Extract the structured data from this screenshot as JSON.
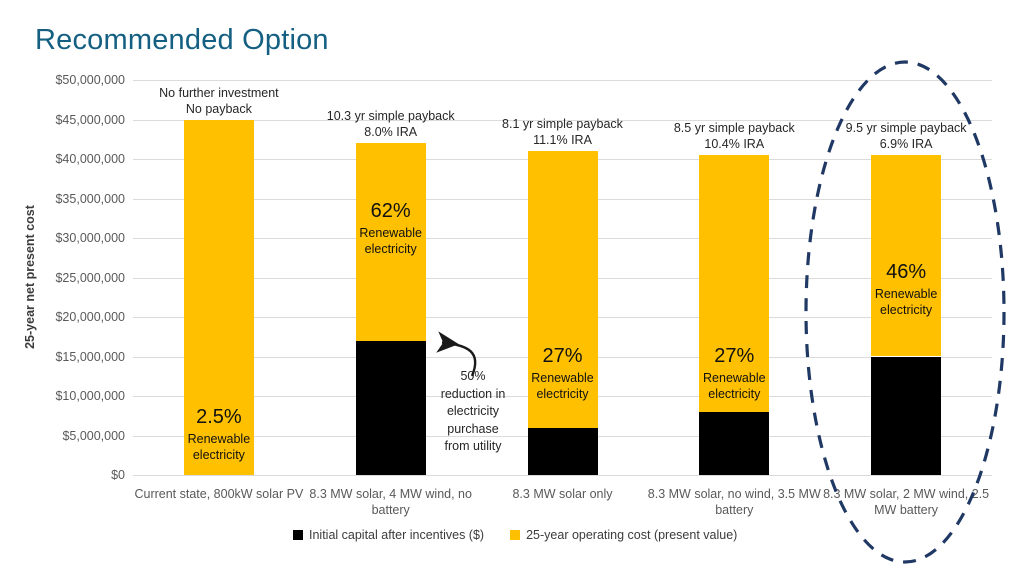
{
  "title": "Recommended Option",
  "colors": {
    "title": "#156082",
    "capital_black": "#000000",
    "operating_yellow": "#FFC000",
    "ellipse_navy": "#1F3864",
    "axis_text": "#595959",
    "annotation_text": "#262626",
    "gridline": "#DBDBDB",
    "arrow": "#1a1a1a"
  },
  "chart_data": {
    "type": "bar",
    "stacked": true,
    "ylabel": "25-year net present cost",
    "ylim": [
      0,
      50000000
    ],
    "ytick_step": 5000000,
    "grid": true,
    "ytick_labels": [
      "$0",
      "$5,000,000",
      "$10,000,000",
      "$15,000,000",
      "$20,000,000",
      "$25,000,000",
      "$30,000,000",
      "$35,000,000",
      "$40,000,000",
      "$45,000,000",
      "$50,000,000"
    ],
    "categories": [
      "Current state, 800kW solar PV",
      "8.3 MW solar, 4 MW wind, no battery",
      "8.3 MW solar only",
      "8.3 MW solar, no wind, 3.5 MW battery",
      "8.3 MW solar, 2 MW wind, 2.5 MW battery"
    ],
    "series": [
      {
        "name": "Initial capital after incentives ($)",
        "color": "#000000",
        "values": [
          0,
          17000000,
          6000000,
          8000000,
          15000000
        ]
      },
      {
        "name": "25-year operating cost  (present value)",
        "color": "#FFC000",
        "values": [
          45000000,
          25000000,
          35000000,
          32500000,
          25500000
        ]
      }
    ],
    "bar_totals": [
      45000000,
      42000000,
      41000000,
      40500000,
      40500000
    ],
    "bar_annotations": [
      "No further investment\nNo payback",
      "10.3 yr simple payback\n8.0% IRA",
      "8.1 yr simple payback\n11.1% IRA",
      "8.5 yr simple payback\n10.4% IRA",
      "9.5 yr simple payback\n6.9% IRA"
    ],
    "bar_labels": [
      {
        "pct": "2.5%",
        "caption": "Renewable electricity"
      },
      {
        "pct": "62%",
        "caption": "Renewable electricity"
      },
      {
        "pct": "27%",
        "caption": "Renewable electricity"
      },
      {
        "pct": "27%",
        "caption": "Renewable electricity"
      },
      {
        "pct": "46%",
        "caption": "Renewable electricity"
      }
    ],
    "callout": {
      "text": "50%\nreduction in\nelectricity\npurchase\nfrom utility",
      "target_bar_index": 1
    },
    "highlighted_bar_index": 4,
    "legend_position": "bottom",
    "legend": [
      {
        "label": "Initial capital after incentives ($)",
        "color": "#000000"
      },
      {
        "label": "25-year operating cost  (present value)",
        "color": "#FFC000"
      }
    ]
  }
}
